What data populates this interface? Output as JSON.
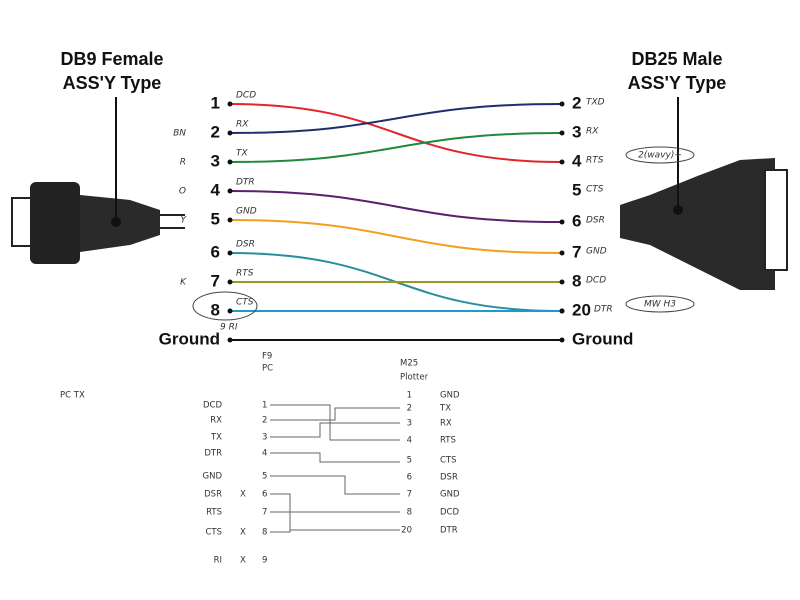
{
  "left_header": {
    "line1": "DB9 Female",
    "line2": "ASS'Y Type"
  },
  "right_header": {
    "line1": "DB25 Male",
    "line2": "ASS'Y Type"
  },
  "left_pins": [
    {
      "number": "1",
      "signal": "DCD"
    },
    {
      "number": "2",
      "signal": "RX",
      "note": "BN"
    },
    {
      "number": "3",
      "signal": "TX",
      "note": "R"
    },
    {
      "number": "4",
      "signal": "DTR",
      "note": "O"
    },
    {
      "number": "5",
      "signal": "GND",
      "note": "Y"
    },
    {
      "number": "6",
      "signal": "DSR"
    },
    {
      "number": "7",
      "signal": "RTS",
      "note": "K"
    },
    {
      "number": "8",
      "signal": "CTS"
    },
    {
      "number": "Ground"
    }
  ],
  "ri_label": "9 RI",
  "right_pins": [
    {
      "number": "2",
      "signal": "TXD"
    },
    {
      "number": "3",
      "signal": "RX"
    },
    {
      "number": "4",
      "signal": "RTS",
      "note": "2(wavy)+"
    },
    {
      "number": "5",
      "signal": "CTS"
    },
    {
      "number": "6",
      "signal": "DSR"
    },
    {
      "number": "7",
      "signal": "GND"
    },
    {
      "number": "8",
      "signal": "DCD"
    },
    {
      "number": "20",
      "signal": "DTR",
      "note": "MW H3"
    },
    {
      "number": "Ground"
    }
  ],
  "sketch": {
    "left_title": "F9",
    "left_subtitle": "PC",
    "right_title": "M25",
    "right_subtitle": "Plotter",
    "side_note": "PC TX",
    "left_rows": [
      {
        "signal": "DCD",
        "pin": "1"
      },
      {
        "signal": "RX",
        "pin": "2"
      },
      {
        "signal": "TX",
        "pin": "3"
      },
      {
        "signal": "DTR",
        "pin": "4"
      },
      {
        "signal": "GND",
        "pin": "5"
      },
      {
        "signal": "DSR",
        "mark": "X",
        "pin": "6"
      },
      {
        "signal": "RTS",
        "pin": "7"
      },
      {
        "signal": "CTS",
        "mark": "X",
        "pin": "8"
      },
      {
        "signal": "RI",
        "mark": "X",
        "pin": "9"
      }
    ],
    "right_rows": [
      {
        "pin": "1",
        "signal": "GND"
      },
      {
        "pin": "2",
        "signal": "TX"
      },
      {
        "pin": "3",
        "signal": "RX"
      },
      {
        "pin": "4",
        "signal": "RTS"
      },
      {
        "pin": "5",
        "signal": "CTS"
      },
      {
        "pin": "6",
        "signal": "DSR"
      },
      {
        "pin": "7",
        "signal": "GND"
      },
      {
        "pin": "8",
        "signal": "DCD"
      },
      {
        "pin": "20",
        "signal": "DTR"
      }
    ]
  }
}
